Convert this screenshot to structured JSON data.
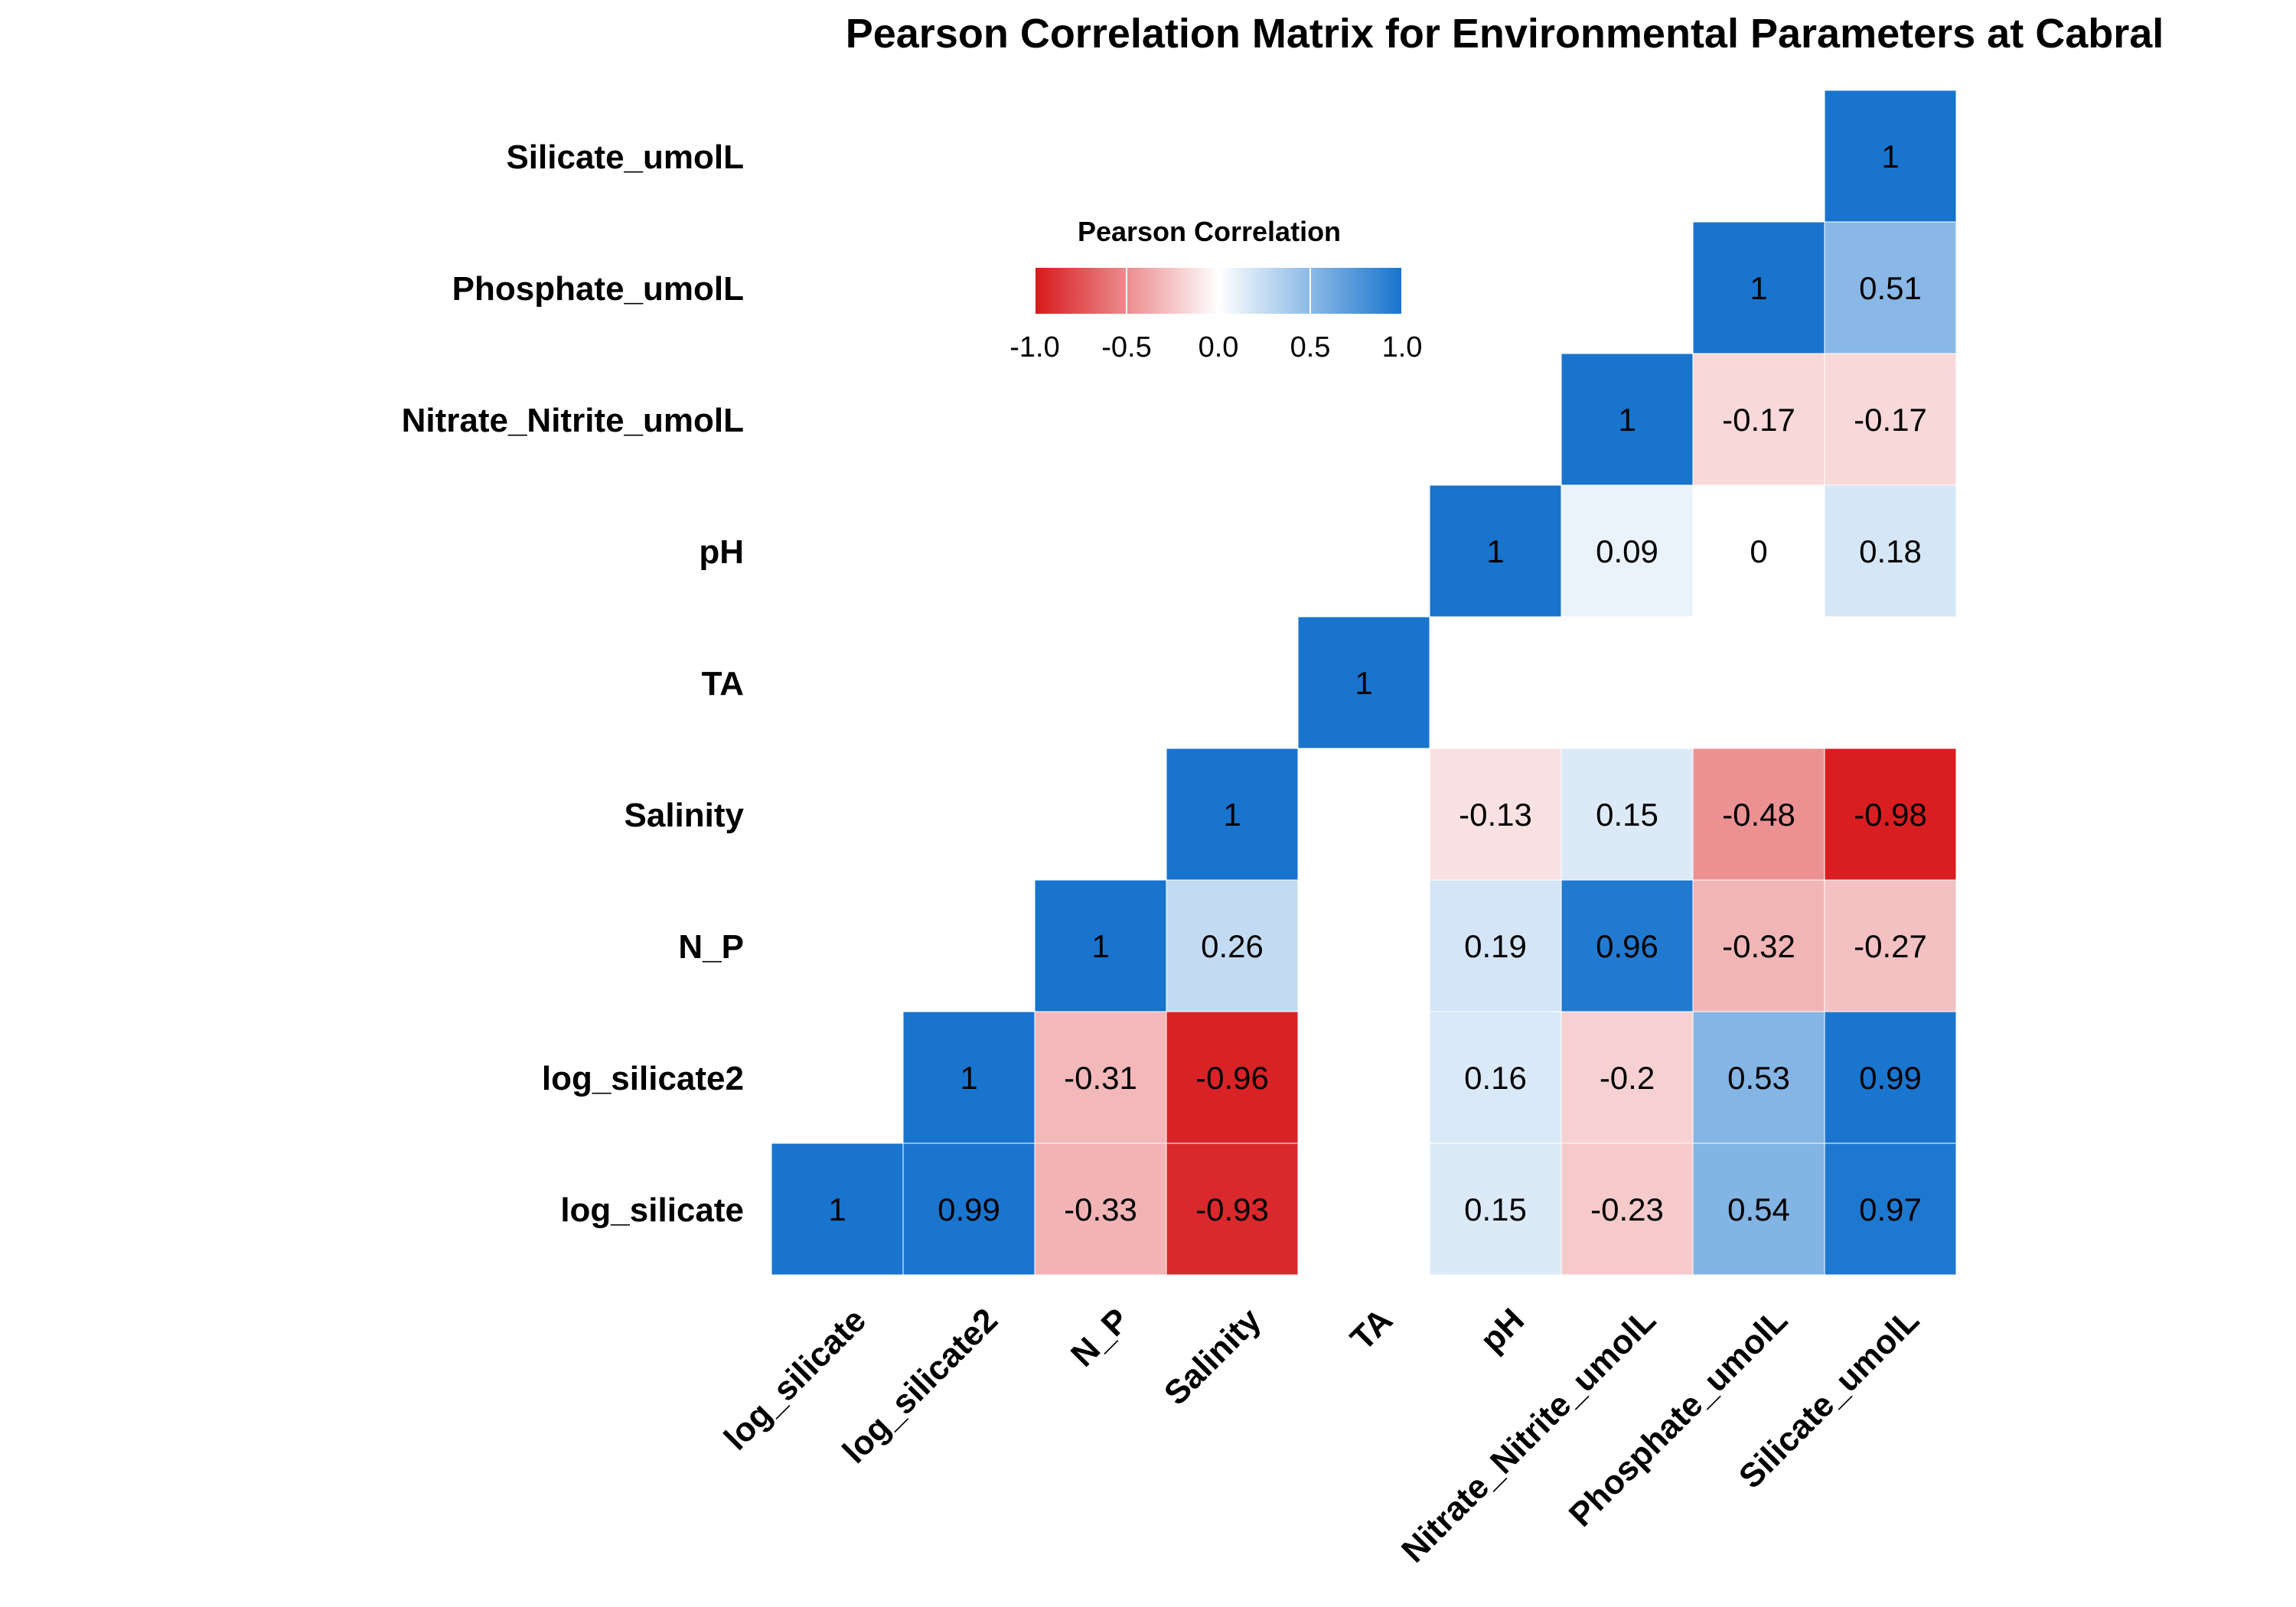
{
  "chart_data": {
    "type": "heatmap",
    "title": "Pearson Correlation Matrix for Environmental Parameters at Cabral",
    "x_categories": [
      "log_silicate",
      "log_silicate2",
      "N_P",
      "Salinity",
      "TA",
      "pH",
      "Nitrate_Nitrite_umolL",
      "Phosphate_umolL",
      "Silicate_umolL"
    ],
    "y_categories_top_to_bottom": [
      "Silicate_umolL",
      "Phosphate_umolL",
      "Nitrate_Nitrite_umolL",
      "pH",
      "TA",
      "Salinity",
      "N_P",
      "log_silicate2",
      "log_silicate"
    ],
    "cells": [
      {
        "x": "log_silicate",
        "y": "log_silicate",
        "value": 1,
        "label": "1"
      },
      {
        "x": "log_silicate2",
        "y": "log_silicate",
        "value": 0.99,
        "label": "0.99"
      },
      {
        "x": "N_P",
        "y": "log_silicate",
        "value": -0.33,
        "label": "-0.33"
      },
      {
        "x": "Salinity",
        "y": "log_silicate",
        "value": -0.93,
        "label": "-0.93"
      },
      {
        "x": "pH",
        "y": "log_silicate",
        "value": 0.15,
        "label": "0.15"
      },
      {
        "x": "Nitrate_Nitrite_umolL",
        "y": "log_silicate",
        "value": -0.23,
        "label": "-0.23"
      },
      {
        "x": "Phosphate_umolL",
        "y": "log_silicate",
        "value": 0.54,
        "label": "0.54"
      },
      {
        "x": "Silicate_umolL",
        "y": "log_silicate",
        "value": 0.97,
        "label": "0.97"
      },
      {
        "x": "log_silicate2",
        "y": "log_silicate2",
        "value": 1,
        "label": "1"
      },
      {
        "x": "N_P",
        "y": "log_silicate2",
        "value": -0.31,
        "label": "-0.31"
      },
      {
        "x": "Salinity",
        "y": "log_silicate2",
        "value": -0.96,
        "label": "-0.96"
      },
      {
        "x": "pH",
        "y": "log_silicate2",
        "value": 0.16,
        "label": "0.16"
      },
      {
        "x": "Nitrate_Nitrite_umolL",
        "y": "log_silicate2",
        "value": -0.2,
        "label": "-0.2"
      },
      {
        "x": "Phosphate_umolL",
        "y": "log_silicate2",
        "value": 0.53,
        "label": "0.53"
      },
      {
        "x": "Silicate_umolL",
        "y": "log_silicate2",
        "value": 0.99,
        "label": "0.99"
      },
      {
        "x": "N_P",
        "y": "N_P",
        "value": 1,
        "label": "1"
      },
      {
        "x": "Salinity",
        "y": "N_P",
        "value": 0.26,
        "label": "0.26"
      },
      {
        "x": "pH",
        "y": "N_P",
        "value": 0.19,
        "label": "0.19"
      },
      {
        "x": "Nitrate_Nitrite_umolL",
        "y": "N_P",
        "value": 0.96,
        "label": "0.96"
      },
      {
        "x": "Phosphate_umolL",
        "y": "N_P",
        "value": -0.32,
        "label": "-0.32"
      },
      {
        "x": "Silicate_umolL",
        "y": "N_P",
        "value": -0.27,
        "label": "-0.27"
      },
      {
        "x": "Salinity",
        "y": "Salinity",
        "value": 1,
        "label": "1"
      },
      {
        "x": "pH",
        "y": "Salinity",
        "value": -0.13,
        "label": "-0.13"
      },
      {
        "x": "Nitrate_Nitrite_umolL",
        "y": "Salinity",
        "value": 0.15,
        "label": "0.15"
      },
      {
        "x": "Phosphate_umolL",
        "y": "Salinity",
        "value": -0.48,
        "label": "-0.48"
      },
      {
        "x": "Silicate_umolL",
        "y": "Salinity",
        "value": -0.98,
        "label": "-0.98"
      },
      {
        "x": "TA",
        "y": "TA",
        "value": 1,
        "label": "1"
      },
      {
        "x": "pH",
        "y": "pH",
        "value": 1,
        "label": "1"
      },
      {
        "x": "Nitrate_Nitrite_umolL",
        "y": "pH",
        "value": 0.09,
        "label": "0.09"
      },
      {
        "x": "Phosphate_umolL",
        "y": "pH",
        "value": 0,
        "label": "0"
      },
      {
        "x": "Silicate_umolL",
        "y": "pH",
        "value": 0.18,
        "label": "0.18"
      },
      {
        "x": "Nitrate_Nitrite_umolL",
        "y": "Nitrate_Nitrite_umolL",
        "value": 1,
        "label": "1"
      },
      {
        "x": "Phosphate_umolL",
        "y": "Nitrate_Nitrite_umolL",
        "value": -0.17,
        "label": "-0.17"
      },
      {
        "x": "Silicate_umolL",
        "y": "Nitrate_Nitrite_umolL",
        "value": -0.17,
        "label": "-0.17"
      },
      {
        "x": "Phosphate_umolL",
        "y": "Phosphate_umolL",
        "value": 1,
        "label": "1"
      },
      {
        "x": "Silicate_umolL",
        "y": "Phosphate_umolL",
        "value": 0.51,
        "label": "0.51"
      },
      {
        "x": "Silicate_umolL",
        "y": "Silicate_umolL",
        "value": 1,
        "label": "1"
      }
    ],
    "legend": {
      "title": "Pearson Correlation",
      "range": [
        -1,
        1
      ],
      "ticks": [
        -1.0,
        -0.5,
        0.0,
        0.5,
        1.0
      ],
      "tick_labels": [
        "-1.0",
        "-0.5",
        "0.0",
        "0.5",
        "1.0"
      ],
      "colors": {
        "low": "#d7191c",
        "mid": "#ffffff",
        "high": "#1874cd"
      },
      "placement": "top-left inside plot"
    },
    "grid": false
  }
}
